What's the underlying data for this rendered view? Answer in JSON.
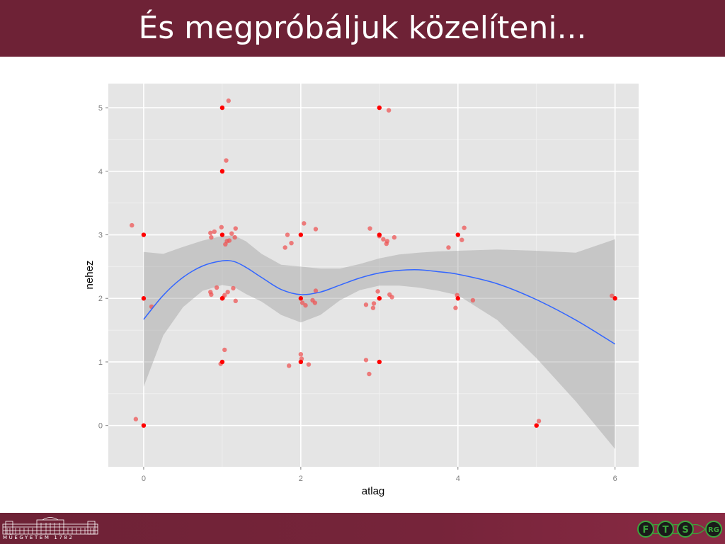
{
  "slide": {
    "title": "És megpróbáljuk közelíteni..."
  },
  "footer": {
    "university_caption": "MŰEGYETEM 1782",
    "lab_letters": [
      "F",
      "T",
      "S",
      "RG"
    ],
    "colors": {
      "bar": "#6e2236",
      "logo_green": "#3aa63c",
      "logo_dark": "#1a1a1a"
    }
  },
  "chart_data": {
    "type": "scatter",
    "title": "",
    "xlabel": "atlag",
    "ylabel": "nehez",
    "xlim": [
      -0.45,
      6.3
    ],
    "ylim": [
      -0.65,
      5.38
    ],
    "x_ticks": [
      0,
      2,
      4,
      6
    ],
    "y_ticks": [
      0,
      1,
      2,
      3,
      4,
      5
    ],
    "grid": true,
    "panel_color": "#e5e5e5",
    "series": [
      {
        "kind": "observed points",
        "color": "#ff0000",
        "points": [
          [
            0,
            0
          ],
          [
            0,
            2
          ],
          [
            0,
            3
          ],
          [
            1,
            1
          ],
          [
            1,
            2
          ],
          [
            1,
            3
          ],
          [
            1,
            4
          ],
          [
            1,
            5
          ],
          [
            2,
            1
          ],
          [
            2,
            2
          ],
          [
            2,
            3
          ],
          [
            3,
            1
          ],
          [
            3,
            2
          ],
          [
            3,
            3
          ],
          [
            3,
            5
          ],
          [
            4,
            2
          ],
          [
            4,
            3
          ],
          [
            5,
            0
          ],
          [
            6,
            2
          ]
        ]
      },
      {
        "kind": "jittered points",
        "color": "#ee5555",
        "points": [
          [
            -0.1,
            0.1
          ],
          [
            -0.15,
            3.15
          ],
          [
            0.1,
            1.87
          ],
          [
            0.98,
            0.97
          ],
          [
            1.03,
            1.19
          ],
          [
            1.05,
            4.17
          ],
          [
            1.08,
            5.11
          ],
          [
            0.85,
            3.03
          ],
          [
            0.9,
            3.05
          ],
          [
            0.86,
            2.96
          ],
          [
            0.99,
            3.12
          ],
          [
            1.12,
            3.02
          ],
          [
            1.17,
            3.1
          ],
          [
            1.16,
            2.96
          ],
          [
            1.06,
            2.9
          ],
          [
            1.04,
            2.85
          ],
          [
            1.09,
            2.91
          ],
          [
            0.85,
            2.1
          ],
          [
            0.86,
            2.06
          ],
          [
            0.93,
            2.17
          ],
          [
            1.03,
            2.05
          ],
          [
            1.07,
            2.1
          ],
          [
            1.14,
            2.16
          ],
          [
            1.17,
            1.96
          ],
          [
            1.01,
            2.01
          ],
          [
            1.8,
            2.8
          ],
          [
            1.83,
            3.0
          ],
          [
            1.88,
            2.87
          ],
          [
            2.04,
            3.18
          ],
          [
            2.19,
            3.09
          ],
          [
            2.06,
            1.89
          ],
          [
            2.02,
            1.93
          ],
          [
            2.15,
            1.97
          ],
          [
            2.18,
            1.93
          ],
          [
            2.19,
            2.12
          ],
          [
            2.0,
            1.12
          ],
          [
            2.01,
            1.05
          ],
          [
            1.85,
            0.94
          ],
          [
            2.1,
            0.96
          ],
          [
            2.88,
            3.1
          ],
          [
            3.0,
            2.98
          ],
          [
            3.05,
            2.93
          ],
          [
            3.09,
            2.86
          ],
          [
            3.1,
            2.9
          ],
          [
            3.19,
            2.96
          ],
          [
            2.83,
            1.9
          ],
          [
            2.92,
            1.85
          ],
          [
            2.93,
            1.92
          ],
          [
            2.98,
            2.11
          ],
          [
            3.0,
            2.0
          ],
          [
            3.13,
            2.06
          ],
          [
            3.16,
            2.02
          ],
          [
            2.83,
            1.03
          ],
          [
            2.87,
            0.81
          ],
          [
            3.12,
            4.96
          ],
          [
            3.88,
            2.8
          ],
          [
            4.05,
            2.92
          ],
          [
            4.08,
            3.11
          ],
          [
            3.97,
            1.85
          ],
          [
            3.99,
            2.05
          ],
          [
            4.19,
            1.97
          ],
          [
            5.03,
            0.07
          ],
          [
            5.96,
            2.04
          ]
        ]
      }
    ],
    "smooth": {
      "color": "#3366ff",
      "band_color": "#b3b3b3",
      "x": [
        0,
        0.25,
        0.5,
        0.75,
        1.0,
        1.15,
        1.3,
        1.5,
        1.75,
        2.0,
        2.25,
        2.5,
        2.75,
        3.0,
        3.25,
        3.5,
        3.75,
        4.0,
        4.5,
        5.0,
        5.5,
        6.0
      ],
      "fit": [
        1.67,
        2.05,
        2.33,
        2.51,
        2.59,
        2.58,
        2.49,
        2.33,
        2.14,
        2.06,
        2.1,
        2.21,
        2.32,
        2.4,
        2.44,
        2.45,
        2.42,
        2.38,
        2.23,
        1.98,
        1.66,
        1.28
      ],
      "lower": [
        0.61,
        1.42,
        1.86,
        2.12,
        2.21,
        2.18,
        2.07,
        1.95,
        1.74,
        1.62,
        1.74,
        1.97,
        2.13,
        2.2,
        2.2,
        2.17,
        2.12,
        2.05,
        1.66,
        1.06,
        0.38,
        -0.37
      ],
      "upper": [
        2.73,
        2.7,
        2.81,
        2.91,
        2.98,
        2.99,
        2.9,
        2.7,
        2.53,
        2.5,
        2.47,
        2.47,
        2.54,
        2.63,
        2.69,
        2.72,
        2.74,
        2.75,
        2.77,
        2.75,
        2.72,
        2.93
      ]
    }
  }
}
